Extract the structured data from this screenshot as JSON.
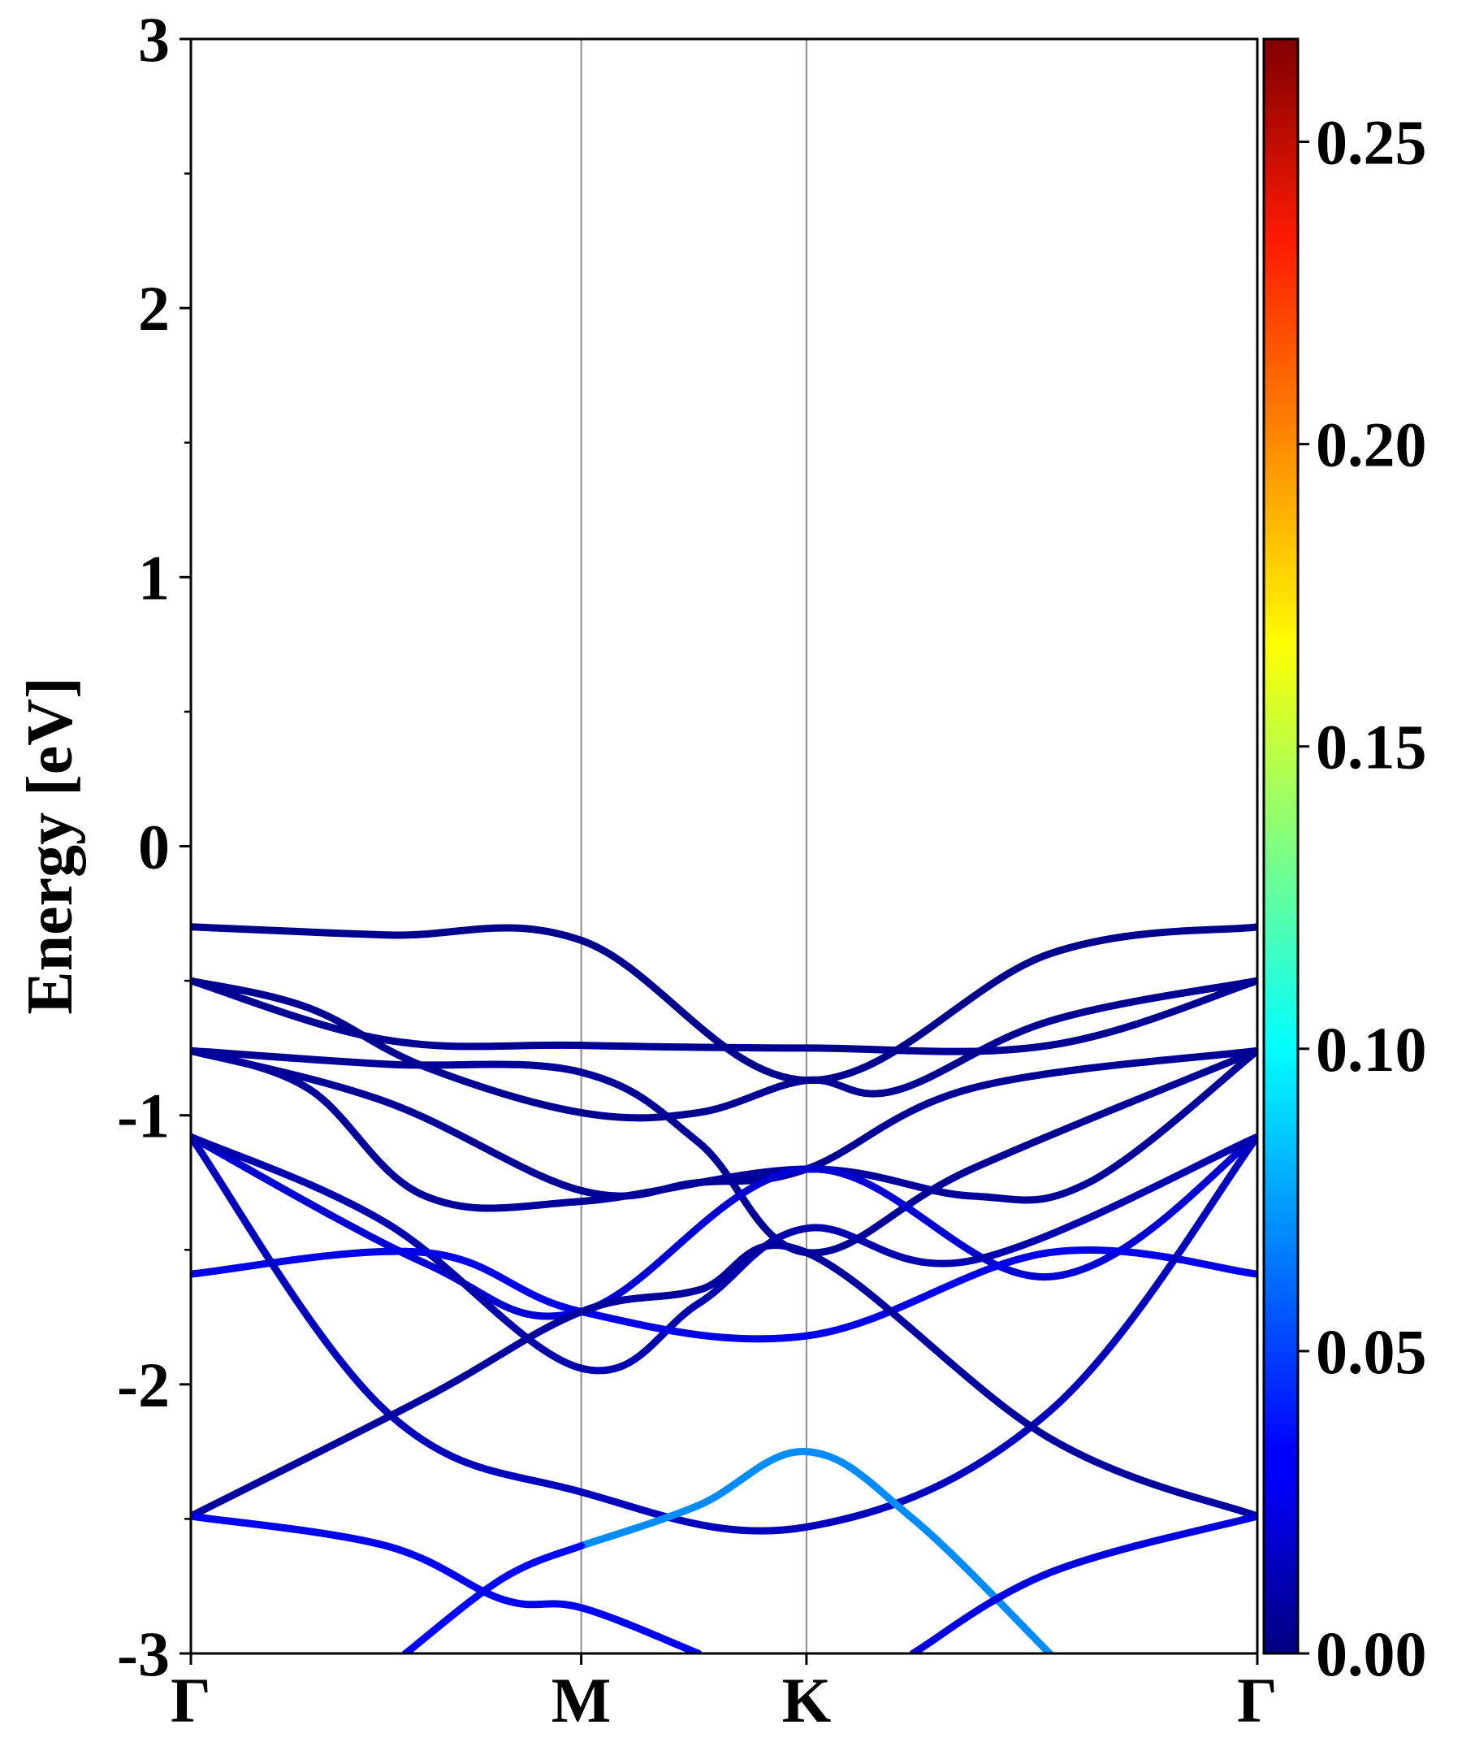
{
  "chart_data": {
    "type": "line",
    "title": "",
    "xlabel": "",
    "ylabel": "Energy [eV]",
    "ylim": [
      -3,
      3
    ],
    "y_ticks": [
      "3",
      "2",
      "1",
      "0",
      "-1",
      "-2",
      "-3"
    ],
    "high_symmetry_points": [
      {
        "label": "Γ",
        "pos": 0.0
      },
      {
        "label": "M",
        "pos": 1.0
      },
      {
        "label": "K",
        "pos": 1.577
      },
      {
        "label": "Γ",
        "pos": 2.732
      }
    ],
    "colorbar": {
      "colormap": "jet",
      "range": [
        0.0,
        0.267
      ],
      "ticks": [
        "0.00",
        "0.05",
        "0.10",
        "0.15",
        "0.20",
        "0.25"
      ]
    },
    "bands": [
      {
        "weight": 0.004,
        "k": [
          0,
          0.5,
          1.0,
          1.577,
          2.2,
          2.732
        ],
        "E": [
          -0.3,
          -0.33,
          -0.35,
          -0.87,
          -0.4,
          -0.3
        ]
      },
      {
        "weight": 0.005,
        "k": [
          0,
          0.5,
          1.0,
          1.577,
          2.2,
          2.732
        ],
        "E": [
          -0.5,
          -0.72,
          -0.74,
          -0.75,
          -0.74,
          -0.5
        ]
      },
      {
        "weight": 0.005,
        "k": [
          0,
          0.3,
          0.6,
          1.0,
          1.3,
          1.577,
          1.8,
          2.2,
          2.732
        ],
        "E": [
          -0.5,
          -0.6,
          -0.82,
          -0.99,
          -0.99,
          -0.87,
          -0.91,
          -0.65,
          -0.5
        ]
      },
      {
        "weight": 0.006,
        "k": [
          0,
          0.5,
          1.0,
          1.3,
          1.577,
          2.0,
          2.732
        ],
        "E": [
          -0.76,
          -0.81,
          -0.84,
          -1.1,
          -1.51,
          -1.2,
          -0.76
        ]
      },
      {
        "weight": 0.006,
        "k": [
          0,
          0.5,
          1.0,
          1.3,
          1.577,
          2.0,
          2.732
        ],
        "E": [
          -0.76,
          -0.95,
          -1.28,
          -1.25,
          -1.2,
          -0.9,
          -0.76
        ]
      },
      {
        "weight": 0.007,
        "k": [
          0,
          0.3,
          0.6,
          1.0,
          1.577,
          2.0,
          2.3,
          2.732
        ],
        "E": [
          -0.76,
          -0.9,
          -1.3,
          -1.32,
          -1.2,
          -1.3,
          -1.25,
          -0.76
        ]
      },
      {
        "weight": 0.022,
        "k": [
          0,
          0.6,
          1.0,
          1.577,
          2.2,
          2.732
        ],
        "E": [
          -1.08,
          -1.55,
          -1.73,
          -1.2,
          -1.6,
          -1.08
        ]
      },
      {
        "weight": 0.012,
        "k": [
          0,
          0.5,
          1.0,
          1.3,
          1.577,
          2.0,
          2.732
        ],
        "E": [
          -1.08,
          -1.4,
          -1.94,
          -1.7,
          -1.42,
          -1.54,
          -1.08
        ]
      },
      {
        "weight": 0.028,
        "k": [
          0,
          0.6,
          1.0,
          1.577,
          2.2,
          2.732
        ],
        "E": [
          -1.59,
          -1.51,
          -1.73,
          -1.82,
          -1.51,
          -1.59
        ]
      },
      {
        "weight": 0.016,
        "k": [
          0,
          0.5,
          1.0,
          1.577,
          2.2,
          2.732
        ],
        "E": [
          -1.08,
          -2.1,
          -2.4,
          -2.53,
          -2.1,
          -1.08
        ]
      },
      {
        "weight": 0.008,
        "k": [
          0,
          0.6,
          1.0,
          1.3,
          1.577,
          2.2,
          2.732
        ],
        "E": [
          -2.49,
          -2.05,
          -1.73,
          -1.65,
          -1.51,
          -2.2,
          -2.49
        ]
      },
      {
        "weight": 0.07,
        "k": [
          1.0,
          1.3,
          1.577,
          1.85,
          2.2
        ],
        "E": [
          -2.6,
          -2.45,
          -2.25,
          -2.5,
          -3.0
        ]
      },
      {
        "weight": 0.035,
        "k": [
          0.55,
          0.8,
          1.0
        ],
        "E": [
          -3.0,
          -2.72,
          -2.6
        ]
      },
      {
        "weight": 0.03,
        "k": [
          0,
          0.5,
          0.8,
          1.0,
          1.3
        ],
        "E": [
          -2.49,
          -2.6,
          -2.8,
          -2.83,
          -3.0
        ]
      },
      {
        "weight": 0.025,
        "k": [
          1.85,
          2.2,
          2.732
        ],
        "E": [
          -3.0,
          -2.7,
          -2.49
        ]
      }
    ]
  }
}
